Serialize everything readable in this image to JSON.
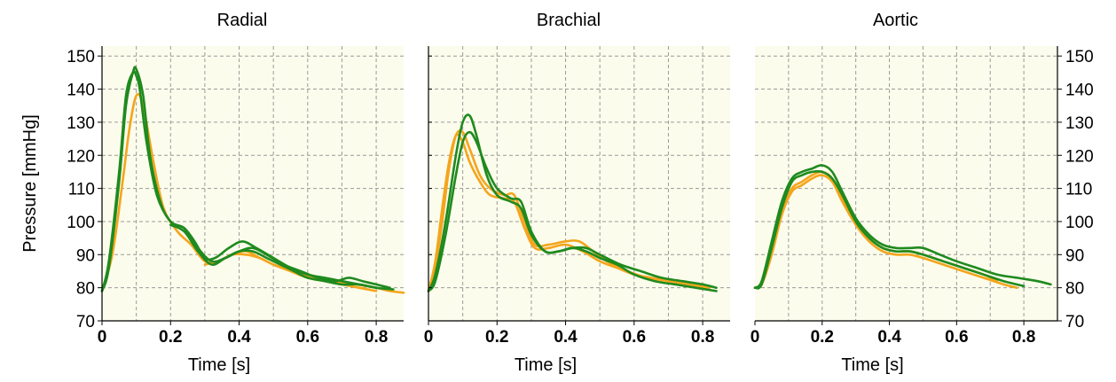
{
  "chart_data": [
    {
      "type": "line",
      "title": "Radial",
      "xlabel": "Time [s]",
      "ylabel": "Pressure [mmHg]",
      "xlim": [
        0,
        0.88
      ],
      "ylim": [
        70,
        153
      ],
      "xticks": [
        0,
        0.2,
        0.4,
        0.6,
        0.8
      ],
      "xtick_labels": [
        "0",
        "0.2",
        "0.4",
        "0.6",
        "0.8"
      ],
      "yticks": [
        70,
        80,
        90,
        100,
        110,
        120,
        130,
        140,
        150
      ],
      "ytick_labels": [
        "70",
        "80",
        "90",
        "100",
        "110",
        "120",
        "130",
        "140",
        "150"
      ],
      "y_axis_side": "left",
      "grid": true,
      "series": [
        {
          "color": "#f4a51c",
          "x": [
            0,
            0.03,
            0.06,
            0.08,
            0.1,
            0.12,
            0.15,
            0.18,
            0.22,
            0.26,
            0.3,
            0.34,
            0.38,
            0.42,
            0.46,
            0.5,
            0.55,
            0.6,
            0.65,
            0.7,
            0.75,
            0.8
          ],
          "y": [
            79,
            90,
            112,
            128,
            138,
            135,
            118,
            104,
            97,
            93,
            88,
            88,
            90,
            91,
            89,
            87,
            85,
            83,
            82,
            81,
            80,
            79
          ]
        },
        {
          "color": "#f4a51c",
          "x": [
            0.3,
            0.34,
            0.38,
            0.42,
            0.46,
            0.5,
            0.56,
            0.62,
            0.68,
            0.74,
            0.8,
            0.84,
            0.88
          ],
          "y": [
            87,
            88,
            90,
            90,
            89,
            87,
            85,
            83,
            82,
            81,
            80,
            79,
            78.5
          ]
        },
        {
          "color": "#1f8a1f",
          "x": [
            0,
            0.02,
            0.05,
            0.07,
            0.09,
            0.1,
            0.12,
            0.14,
            0.17,
            0.2,
            0.24,
            0.27,
            0.3,
            0.33,
            0.37,
            0.41,
            0.45,
            0.5,
            0.55,
            0.6,
            0.65,
            0.7,
            0.75,
            0.8
          ],
          "y": [
            79,
            86,
            112,
            135,
            145,
            146,
            138,
            120,
            106,
            100,
            98,
            94,
            89,
            89,
            92,
            94,
            92,
            89,
            86,
            84,
            83,
            82,
            81,
            80
          ]
        },
        {
          "color": "#1f8a1f",
          "x": [
            0,
            0.02,
            0.05,
            0.07,
            0.09,
            0.1,
            0.11,
            0.13,
            0.16,
            0.2,
            0.24,
            0.28,
            0.32,
            0.36,
            0.4,
            0.44,
            0.48,
            0.53,
            0.58,
            0.63,
            0.68,
            0.72,
            0.76,
            0.8,
            0.84
          ],
          "y": [
            79,
            88,
            115,
            138,
            145,
            144,
            140,
            124,
            108,
            100,
            98,
            92,
            88,
            89,
            91,
            92,
            90,
            87,
            85,
            83,
            82,
            83,
            82,
            81,
            80
          ]
        },
        {
          "color": "#1f8a1f",
          "x": [
            0.2,
            0.24,
            0.28,
            0.32,
            0.36,
            0.4,
            0.44,
            0.48,
            0.52,
            0.56,
            0.6,
            0.65,
            0.7,
            0.75,
            0.8,
            0.85
          ],
          "y": [
            99,
            97,
            91,
            87,
            89,
            91,
            91,
            89,
            87,
            85,
            83,
            82,
            81,
            81,
            80,
            79.5
          ]
        }
      ]
    },
    {
      "type": "line",
      "title": "Brachial",
      "xlabel": "Time [s]",
      "ylabel": "",
      "xlim": [
        0,
        0.88
      ],
      "ylim": [
        70,
        153
      ],
      "xticks": [
        0,
        0.2,
        0.4,
        0.6,
        0.8
      ],
      "xtick_labels": [
        "0",
        "0.2",
        "0.4",
        "0.6",
        "0.8"
      ],
      "yticks": [
        70,
        80,
        90,
        100,
        110,
        120,
        130,
        140,
        150
      ],
      "ytick_labels": [],
      "y_axis_side": "none",
      "grid": true,
      "series": [
        {
          "color": "#f4a51c",
          "x": [
            0,
            0.02,
            0.04,
            0.06,
            0.08,
            0.1,
            0.12,
            0.15,
            0.18,
            0.22,
            0.25,
            0.28,
            0.31,
            0.35,
            0.4,
            0.45,
            0.5,
            0.55,
            0.6,
            0.65,
            0.7,
            0.75,
            0.8
          ],
          "y": [
            79,
            88,
            104,
            118,
            126,
            124,
            118,
            112,
            108,
            107,
            106,
            98,
            92,
            92,
            93,
            91,
            88,
            86,
            84,
            83,
            82,
            81,
            80
          ]
        },
        {
          "color": "#f4a51c",
          "x": [
            0,
            0.02,
            0.04,
            0.06,
            0.08,
            0.1,
            0.12,
            0.15,
            0.18,
            0.22,
            0.25,
            0.28,
            0.31,
            0.35,
            0.4,
            0.44,
            0.48,
            0.52,
            0.58,
            0.64,
            0.7,
            0.76,
            0.82
          ],
          "y": [
            79,
            86,
            100,
            116,
            126,
            127,
            122,
            114,
            110,
            108,
            108,
            100,
            93,
            93,
            94,
            94,
            91,
            88,
            85,
            83,
            82,
            81,
            80
          ]
        },
        {
          "color": "#1f8a1f",
          "x": [
            0,
            0.02,
            0.05,
            0.08,
            0.1,
            0.12,
            0.14,
            0.17,
            0.2,
            0.24,
            0.27,
            0.3,
            0.34,
            0.38,
            0.42,
            0.46,
            0.5,
            0.56,
            0.62,
            0.68,
            0.74,
            0.8,
            0.84
          ],
          "y": [
            79,
            84,
            100,
            120,
            130,
            132,
            126,
            114,
            108,
            106,
            104,
            96,
            91,
            91,
            92,
            92,
            90,
            87,
            85,
            83,
            82,
            81,
            80
          ]
        },
        {
          "color": "#1f8a1f",
          "x": [
            0,
            0.02,
            0.05,
            0.08,
            0.1,
            0.12,
            0.14,
            0.17,
            0.2,
            0.24,
            0.27,
            0.3,
            0.34,
            0.38,
            0.42,
            0.46,
            0.5,
            0.55,
            0.6,
            0.66,
            0.72,
            0.78,
            0.84
          ],
          "y": [
            79,
            82,
            96,
            114,
            124,
            127,
            124,
            116,
            110,
            107,
            106,
            97,
            91,
            91,
            92,
            91,
            89,
            87,
            84,
            82,
            81,
            80,
            79
          ]
        }
      ]
    },
    {
      "type": "line",
      "title": "Aortic",
      "xlabel": "Time [s]",
      "ylabel": "",
      "xlim": [
        0,
        0.9
      ],
      "ylim": [
        70,
        153
      ],
      "xticks": [
        0,
        0.2,
        0.4,
        0.6,
        0.8
      ],
      "xtick_labels": [
        "0",
        "0.2",
        "0.4",
        "0.6",
        "0.8"
      ],
      "yticks": [
        70,
        80,
        90,
        100,
        110,
        120,
        130,
        140,
        150
      ],
      "ytick_labels": [
        "70",
        "80",
        "90",
        "100",
        "110",
        "120",
        "130",
        "140",
        "150"
      ],
      "y_axis_side": "right",
      "grid": true,
      "series": [
        {
          "color": "#f4a51c",
          "x": [
            0,
            0.02,
            0.05,
            0.08,
            0.11,
            0.14,
            0.17,
            0.2,
            0.23,
            0.26,
            0.3,
            0.34,
            0.38,
            0.42,
            0.46,
            0.5,
            0.56,
            0.62,
            0.68,
            0.74,
            0.78
          ],
          "y": [
            80,
            81,
            90,
            102,
            109,
            111,
            113,
            114,
            112,
            106,
            99,
            94,
            91,
            90,
            90,
            89,
            87,
            85,
            83,
            81,
            80
          ]
        },
        {
          "color": "#f4a51c",
          "x": [
            0,
            0.02,
            0.05,
            0.08,
            0.11,
            0.14,
            0.17,
            0.2,
            0.23,
            0.26,
            0.3,
            0.34,
            0.38,
            0.42,
            0.46,
            0.5,
            0.56,
            0.62,
            0.68,
            0.72
          ],
          "y": [
            80,
            81,
            91,
            103,
            110,
            112,
            114,
            115,
            113,
            107,
            100,
            95,
            92,
            91,
            91,
            90,
            88,
            86,
            84,
            82
          ]
        },
        {
          "color": "#1f8a1f",
          "x": [
            0,
            0.02,
            0.05,
            0.08,
            0.11,
            0.14,
            0.17,
            0.2,
            0.23,
            0.26,
            0.3,
            0.34,
            0.38,
            0.42,
            0.46,
            0.5,
            0.55,
            0.6,
            0.66,
            0.72,
            0.78,
            0.84,
            0.88
          ],
          "y": [
            80,
            82,
            94,
            106,
            113,
            115,
            116,
            117,
            115,
            109,
            101,
            96,
            93,
            92,
            92,
            92,
            90,
            88,
            86,
            84,
            83,
            82,
            81
          ]
        },
        {
          "color": "#1f8a1f",
          "x": [
            0,
            0.02,
            0.05,
            0.08,
            0.11,
            0.14,
            0.17,
            0.2,
            0.23,
            0.26,
            0.3,
            0.34,
            0.38,
            0.42,
            0.46,
            0.5,
            0.56,
            0.62,
            0.68,
            0.74,
            0.8
          ],
          "y": [
            80,
            81,
            92,
            104,
            112,
            114,
            115,
            115,
            113,
            108,
            100,
            95,
            92,
            91,
            91,
            90,
            88,
            86,
            84,
            82,
            80.5
          ]
        }
      ]
    }
  ]
}
